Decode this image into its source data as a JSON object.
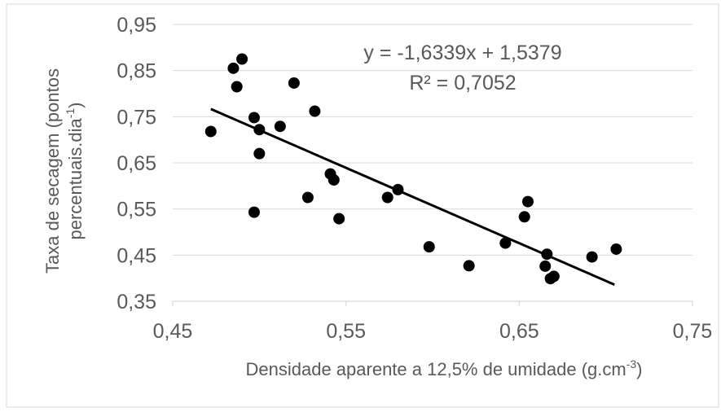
{
  "chart_data": {
    "type": "scatter",
    "xlabel": "Densidade aparente a 12,5% de umidade  (g.cm",
    "xlabel_sup": "-3",
    "xlabel_end": ")",
    "ylabel_line1": "Taxa de secagem (pontos",
    "ylabel_line2": "percentuais.dia",
    "ylabel_sup": "-1",
    "ylabel_end": ")",
    "xlim": [
      0.45,
      0.75
    ],
    "ylim": [
      0.35,
      0.95
    ],
    "x_ticks": [
      0.45,
      0.55,
      0.65,
      0.75
    ],
    "x_tick_labels": [
      "0,45",
      "0,55",
      "0,65",
      "0,75"
    ],
    "y_ticks": [
      0.35,
      0.45,
      0.55,
      0.65,
      0.75,
      0.85,
      0.95
    ],
    "y_tick_labels": [
      "0,35",
      "0,45",
      "0,55",
      "0,65",
      "0,75",
      "0,85",
      "0,95"
    ],
    "grid": "horizontal",
    "equation": "y = -1,6339x + 1,5379",
    "r_squared": "R² = 0,7052",
    "trendline": {
      "slope": -1.6339,
      "intercept": 1.5379,
      "x_start": 0.472,
      "x_end": 0.705
    },
    "points": [
      {
        "x": 0.472,
        "y": 0.718
      },
      {
        "x": 0.485,
        "y": 0.855
      },
      {
        "x": 0.487,
        "y": 0.815
      },
      {
        "x": 0.49,
        "y": 0.875
      },
      {
        "x": 0.497,
        "y": 0.748
      },
      {
        "x": 0.497,
        "y": 0.543
      },
      {
        "x": 0.5,
        "y": 0.722
      },
      {
        "x": 0.5,
        "y": 0.67
      },
      {
        "x": 0.512,
        "y": 0.729
      },
      {
        "x": 0.52,
        "y": 0.823
      },
      {
        "x": 0.528,
        "y": 0.575
      },
      {
        "x": 0.532,
        "y": 0.762
      },
      {
        "x": 0.541,
        "y": 0.626
      },
      {
        "x": 0.543,
        "y": 0.613
      },
      {
        "x": 0.546,
        "y": 0.529
      },
      {
        "x": 0.574,
        "y": 0.575
      },
      {
        "x": 0.58,
        "y": 0.592
      },
      {
        "x": 0.598,
        "y": 0.468
      },
      {
        "x": 0.621,
        "y": 0.427
      },
      {
        "x": 0.642,
        "y": 0.476
      },
      {
        "x": 0.653,
        "y": 0.533
      },
      {
        "x": 0.655,
        "y": 0.566
      },
      {
        "x": 0.665,
        "y": 0.426
      },
      {
        "x": 0.666,
        "y": 0.452
      },
      {
        "x": 0.668,
        "y": 0.399
      },
      {
        "x": 0.67,
        "y": 0.404
      },
      {
        "x": 0.692,
        "y": 0.446
      },
      {
        "x": 0.706,
        "y": 0.463
      }
    ]
  }
}
